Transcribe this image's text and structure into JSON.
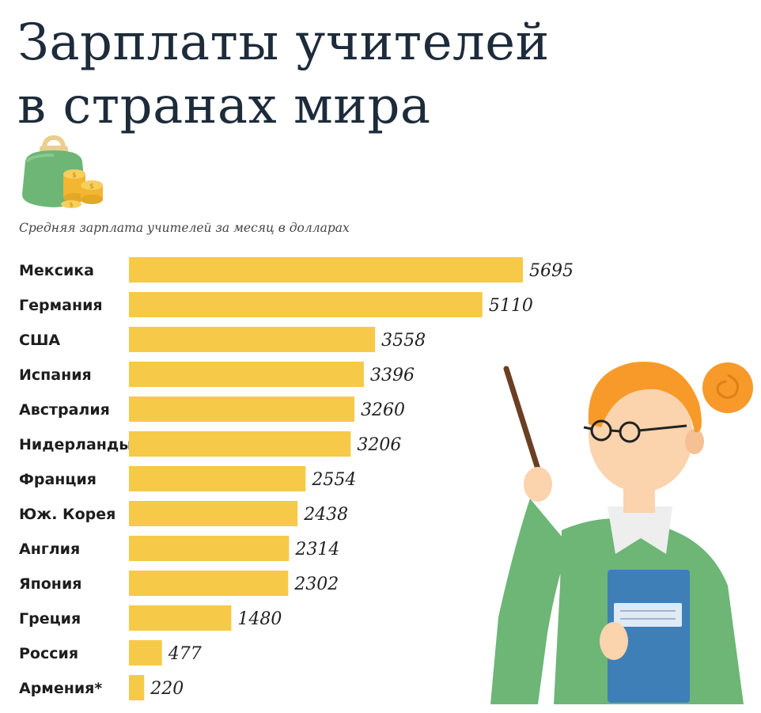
{
  "title": {
    "line1": "Зарплаты учителей",
    "line2": "в странах мира"
  },
  "subtitle": "Средняя зарплата учителей за месяц в долларах",
  "colors": {
    "bar": "#f7c948",
    "title": "#1d2b3a",
    "wallet": "#6db676",
    "coin": "#f2b631"
  },
  "icons": [
    "wallet-icon",
    "coins-icon",
    "teacher-illustration"
  ],
  "chart_data": {
    "type": "bar",
    "orientation": "horizontal",
    "categories": [
      "Мексика",
      "Германия",
      "США",
      "Испания",
      "Австралия",
      "Нидерланды",
      "Франция",
      "Юж. Корея",
      "Англия",
      "Япония",
      "Греция",
      "Россия",
      "Армения*"
    ],
    "values": [
      5695,
      5110,
      3558,
      3396,
      3260,
      3206,
      2554,
      2438,
      2314,
      2302,
      1480,
      477,
      220
    ],
    "value_labels": [
      "5695",
      "5110",
      "3558",
      "3396",
      "3260",
      "3206",
      "2554",
      "2438",
      "2314",
      "2302",
      "1480",
      "477",
      "220"
    ],
    "xlim": [
      0,
      5695
    ],
    "grid": false,
    "legend": "none"
  }
}
